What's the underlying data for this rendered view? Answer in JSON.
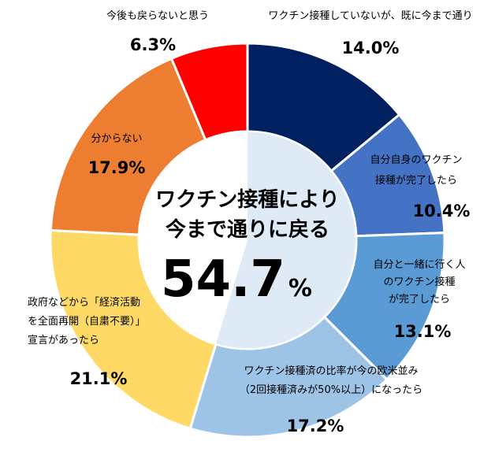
{
  "chart_data": {
    "type": "pie",
    "donut": true,
    "slices": [
      {
        "label_lines": [
          "ワクチン接種していないが、既に今まで通り"
        ],
        "value": 14.0,
        "display": "14.0%",
        "color": "#002060"
      },
      {
        "label_lines": [
          "自分自身のワクチン",
          "接種が完了したら"
        ],
        "value": 10.4,
        "display": "10.4%",
        "color": "#4472C4"
      },
      {
        "label_lines": [
          "自分と一緒に行く人",
          "のワクチン接種",
          "が完了したら"
        ],
        "value": 13.1,
        "display": "13.1%",
        "color": "#5B9BD5"
      },
      {
        "label_lines": [
          "ワクチン接種済の比率が今の欧米並み",
          "（2回接種済みが50%以上）になったら"
        ],
        "value": 17.2,
        "display": "17.2%",
        "color": "#9DC3E6"
      },
      {
        "label_lines": [
          "政府などから「経済活動",
          "を全面再開（自粛不要）」",
          "宣言があったら"
        ],
        "value": 21.1,
        "display": "21.1%",
        "color": "#FFD966"
      },
      {
        "label_lines": [
          "分からない"
        ],
        "value": 17.9,
        "display": "17.9%",
        "color": "#ED7D31"
      },
      {
        "label_lines": [
          "今後も戻らないと思う"
        ],
        "value": 6.3,
        "display": "6.3%",
        "color": "#FF0000"
      }
    ],
    "center": {
      "title_lines": [
        "ワクチン接種により",
        "今まで通りに戻る"
      ],
      "value": "54.7",
      "unit": "%",
      "highlight_color": "#DEEBF7"
    }
  }
}
